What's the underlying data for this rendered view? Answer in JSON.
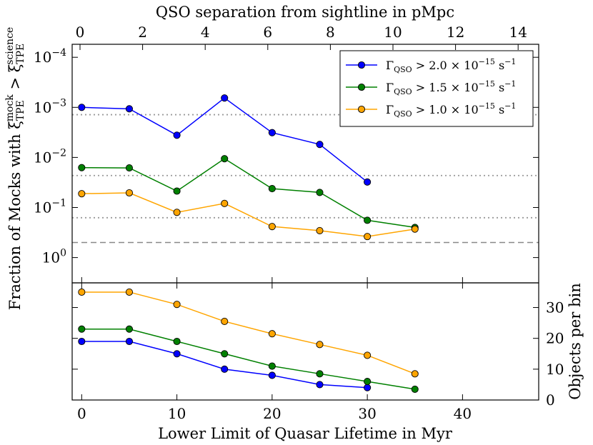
{
  "chart_data": [
    {
      "type": "line",
      "panel": "top",
      "x_label": "Lower Limit of Quasar Lifetime in Myr",
      "x_ticks": [
        "0",
        "10",
        "20",
        "30",
        "40"
      ],
      "x_lim": [
        -1,
        48
      ],
      "top_x_label": "QSO separation from sightline in pMpc",
      "top_x_ticks": [
        "0",
        "2",
        "4",
        "6",
        "8",
        "10",
        "12",
        "14"
      ],
      "top_x_values": [
        0,
        2,
        4,
        6,
        8,
        10,
        12,
        14
      ],
      "y_label": "Fraction of Mocks with ξ_TPE^mock > ξ_TPE^science",
      "y_tick_labels": [
        {
          "base": "10",
          "exp": "0",
          "value": 1
        },
        {
          "base": "10",
          "exp": "−1",
          "value": 0.1
        },
        {
          "base": "10",
          "exp": "−2",
          "value": 0.01
        },
        {
          "base": "10",
          "exp": "−3",
          "value": 0.001
        },
        {
          "base": "10",
          "exp": "−4",
          "value": 0.0001
        }
      ],
      "y_scale": "log, inverted",
      "y_lim": [
        3.2,
        5.5e-05
      ],
      "reference_lines": [
        {
          "style": "dotted",
          "value": 0.0014
        },
        {
          "style": "dotted",
          "value": 0.023
        },
        {
          "style": "dotted",
          "value": 0.16
        },
        {
          "style": "dashed",
          "value": 0.5
        }
      ],
      "legend_position": "top-right",
      "series": [
        {
          "name": "Gamma_QSO > 2.0e-15",
          "legend": {
            "prefix": "Γ",
            "sub": "QSO",
            "mid": " > 2.0 × 10",
            "exp": "−15",
            "suffix": " s",
            "suffix_exp": "−1"
          },
          "color": "#0000ff",
          "x": [
            0,
            5,
            10,
            15,
            20,
            25,
            30
          ],
          "values": [
            0.001,
            0.00107,
            0.0036,
            0.00065,
            0.0032,
            0.0055,
            0.031
          ]
        },
        {
          "name": "Gamma_QSO > 1.5e-15",
          "legend": {
            "prefix": "Γ",
            "sub": "QSO",
            "mid": " > 1.5 × 10",
            "exp": "−15",
            "suffix": " s",
            "suffix_exp": "−1"
          },
          "color": "#008000",
          "x": [
            0,
            5,
            10,
            15,
            20,
            25,
            30,
            35
          ],
          "values": [
            0.016,
            0.0162,
            0.047,
            0.0106,
            0.042,
            0.05,
            0.18,
            0.25
          ]
        },
        {
          "name": "Gamma_QSO > 1.0e-15",
          "legend": {
            "prefix": "Γ",
            "sub": "QSO",
            "mid": " > 1.0 × 10",
            "exp": "−15",
            "suffix": " s",
            "suffix_exp": "−1"
          },
          "color": "#ffa500",
          "x": [
            0,
            5,
            10,
            15,
            20,
            25,
            30,
            35
          ],
          "values": [
            0.053,
            0.051,
            0.125,
            0.083,
            0.24,
            0.29,
            0.38,
            0.27
          ]
        }
      ]
    },
    {
      "type": "line",
      "panel": "bottom",
      "x_label": "Lower Limit of Quasar Lifetime in Myr",
      "y_label": "Objects per bin",
      "y_ticks": [
        "0",
        "10",
        "20",
        "30"
      ],
      "y_lim": [
        0,
        38
      ],
      "series": [
        {
          "name": "Gamma_QSO > 2.0e-15",
          "color": "#0000ff",
          "x": [
            0,
            5,
            10,
            15,
            20,
            25,
            30
          ],
          "values": [
            19,
            19,
            15,
            10,
            8,
            5,
            4
          ]
        },
        {
          "name": "Gamma_QSO > 1.5e-15",
          "color": "#008000",
          "x": [
            0,
            5,
            10,
            15,
            20,
            25,
            30,
            35
          ],
          "values": [
            23,
            23,
            19,
            15,
            11,
            8.5,
            6,
            3.5
          ]
        },
        {
          "name": "Gamma_QSO > 1.0e-15",
          "color": "#ffa500",
          "x": [
            0,
            5,
            10,
            15,
            20,
            25,
            30,
            35
          ],
          "values": [
            35,
            35,
            31,
            25.5,
            21.5,
            18,
            14.5,
            8.5
          ]
        }
      ]
    }
  ]
}
